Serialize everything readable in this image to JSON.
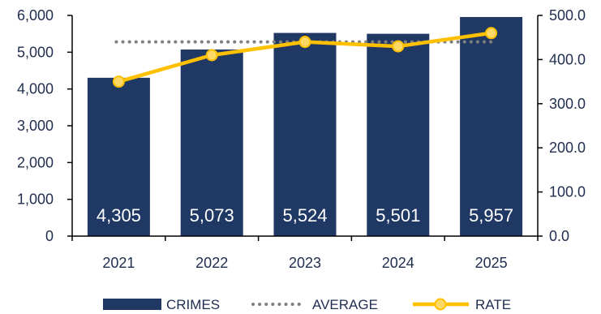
{
  "chart_data": {
    "type": "bar",
    "categories": [
      "2021",
      "2022",
      "2023",
      "2024",
      "2025"
    ],
    "series": [
      {
        "name": "CRIMES",
        "type": "bar",
        "axis": "left",
        "values": [
          4305,
          5073,
          5524,
          5501,
          5957
        ],
        "labels": [
          "4,305",
          "5,073",
          "5,524",
          "5,501",
          "5,957"
        ]
      },
      {
        "name": "AVERAGE",
        "type": "line",
        "style": "dotted",
        "axis": "right",
        "values": [
          440,
          440,
          440,
          440,
          440
        ]
      },
      {
        "name": "RATE",
        "type": "line",
        "axis": "right",
        "values": [
          350,
          410,
          440,
          430,
          460
        ]
      }
    ],
    "y_left": {
      "min": 0,
      "max": 6000,
      "ticks": [
        "0",
        "1,000",
        "2,000",
        "3,000",
        "4,000",
        "5,000",
        "6,000"
      ]
    },
    "y_right": {
      "min": 0,
      "max": 500,
      "ticks": [
        "0.0",
        "100.0",
        "200.0",
        "300.0",
        "400.0",
        "500.0"
      ]
    },
    "legend": {
      "position": "bottom",
      "items": [
        "CRIMES",
        "AVERAGE",
        "RATE"
      ]
    },
    "grid": false,
    "colors": {
      "bar": "#1f3864",
      "average": "#7f7f7f",
      "rate": "#ffc000",
      "rate_marker_fill": "#ffd966",
      "text": "#1f2d4f"
    }
  }
}
